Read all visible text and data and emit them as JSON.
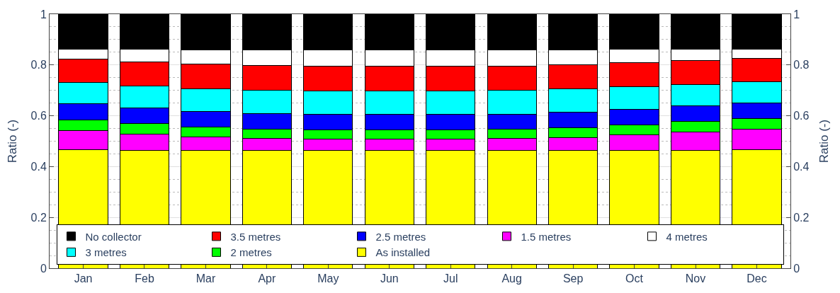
{
  "chart_data": {
    "type": "bar",
    "stacked": true,
    "categories": [
      "Jan",
      "Feb",
      "Mar",
      "Apr",
      "May",
      "Jun",
      "Jul",
      "Aug",
      "Sep",
      "Oct",
      "Nov",
      "Dec"
    ],
    "ylabel": "Ratio (-)",
    "y2label": "Ratio (-)",
    "ylim": [
      0,
      1
    ],
    "yticks": [
      0,
      0.2,
      0.4,
      0.6,
      0.8,
      1
    ],
    "y2lim": [
      0,
      1
    ],
    "y2ticks": [
      0,
      0.2,
      0.4,
      0.6,
      0.8,
      1
    ],
    "grid": "y",
    "legend": "bottom",
    "series": [
      {
        "name": "As installed",
        "color": "#ffff00",
        "values": [
          0.466,
          0.465,
          0.465,
          0.465,
          0.465,
          0.465,
          0.465,
          0.464,
          0.463,
          0.463,
          0.465,
          0.466
        ]
      },
      {
        "name": "1.5 metres",
        "color": "#ff00ff",
        "values": [
          0.075,
          0.063,
          0.052,
          0.047,
          0.044,
          0.044,
          0.044,
          0.046,
          0.052,
          0.063,
          0.072,
          0.081
        ]
      },
      {
        "name": "2 metres",
        "color": "#00ff00",
        "values": [
          0.043,
          0.041,
          0.038,
          0.035,
          0.035,
          0.035,
          0.035,
          0.036,
          0.037,
          0.038,
          0.04,
          0.043
        ]
      },
      {
        "name": "2.5 metres",
        "color": "#0000ff",
        "values": [
          0.063,
          0.061,
          0.062,
          0.061,
          0.061,
          0.061,
          0.061,
          0.06,
          0.062,
          0.062,
          0.062,
          0.061
        ]
      },
      {
        "name": "3 metres",
        "color": "#00ffff",
        "values": [
          0.084,
          0.088,
          0.089,
          0.093,
          0.093,
          0.093,
          0.093,
          0.094,
          0.091,
          0.089,
          0.085,
          0.084
        ]
      },
      {
        "name": "3.5 metres",
        "color": "#ff0000",
        "values": [
          0.092,
          0.094,
          0.097,
          0.097,
          0.097,
          0.097,
          0.097,
          0.096,
          0.096,
          0.093,
          0.094,
          0.091
        ]
      },
      {
        "name": "4 metres",
        "color": "#ffffff",
        "values": [
          0.038,
          0.049,
          0.057,
          0.062,
          0.065,
          0.065,
          0.065,
          0.064,
          0.059,
          0.053,
          0.043,
          0.035
        ]
      },
      {
        "name": "No collector",
        "color": "#000000",
        "values": [
          0.139,
          0.139,
          0.14,
          0.14,
          0.14,
          0.14,
          0.14,
          0.14,
          0.14,
          0.14,
          0.139,
          0.139
        ]
      }
    ]
  }
}
